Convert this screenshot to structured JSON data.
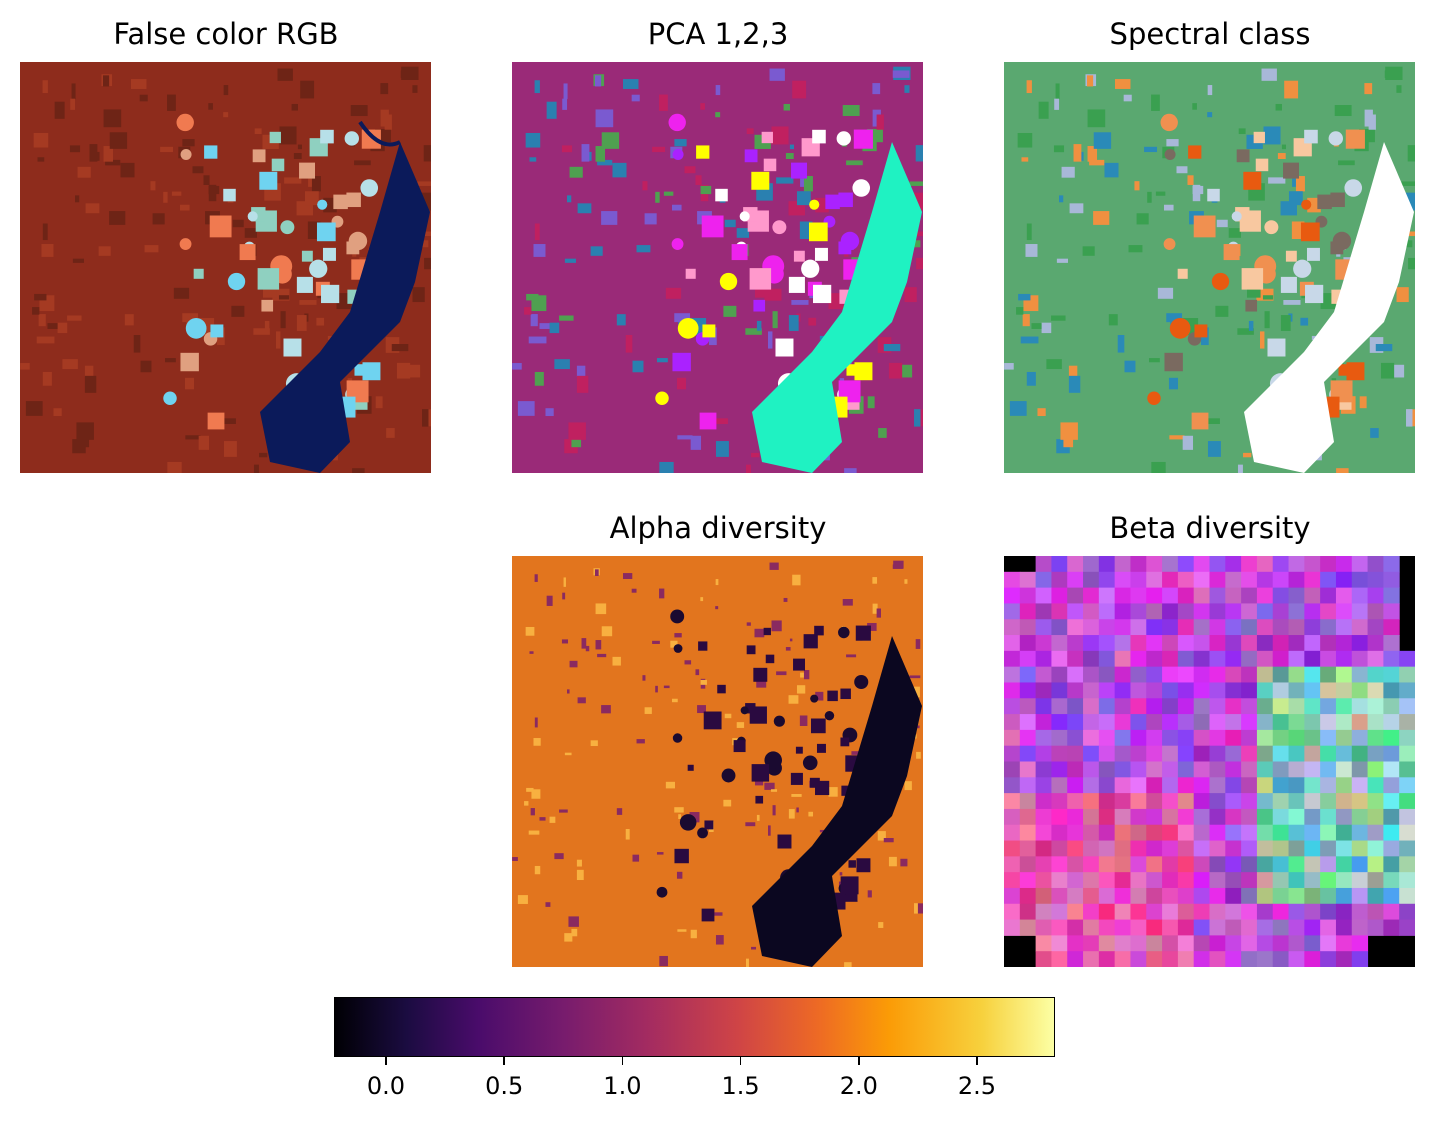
{
  "panels": {
    "false_color": {
      "title": "False color RGB"
    },
    "pca": {
      "title": "PCA 1,2,3"
    },
    "spectral": {
      "title": "Spectral class"
    },
    "alpha": {
      "title": "Alpha diversity"
    },
    "beta": {
      "title": "Beta diversity"
    }
  },
  "chart_data": {
    "type": "heatmap",
    "colorbar": {
      "colormap": "inferno",
      "range": [
        -0.22,
        2.83
      ],
      "ticks": [
        0.0,
        0.5,
        1.0,
        1.5,
        2.0,
        2.5
      ],
      "tick_labels": [
        "0.0",
        "0.5",
        "1.0",
        "1.5",
        "2.0",
        "2.5"
      ]
    }
  },
  "colors": {
    "water_rgb": "#0a1a55",
    "land_rgb": "#8a2a1a",
    "water_pca": "#1ff5c0",
    "alpha_low": "#0b0720",
    "alpha_mid": "#e07020"
  }
}
